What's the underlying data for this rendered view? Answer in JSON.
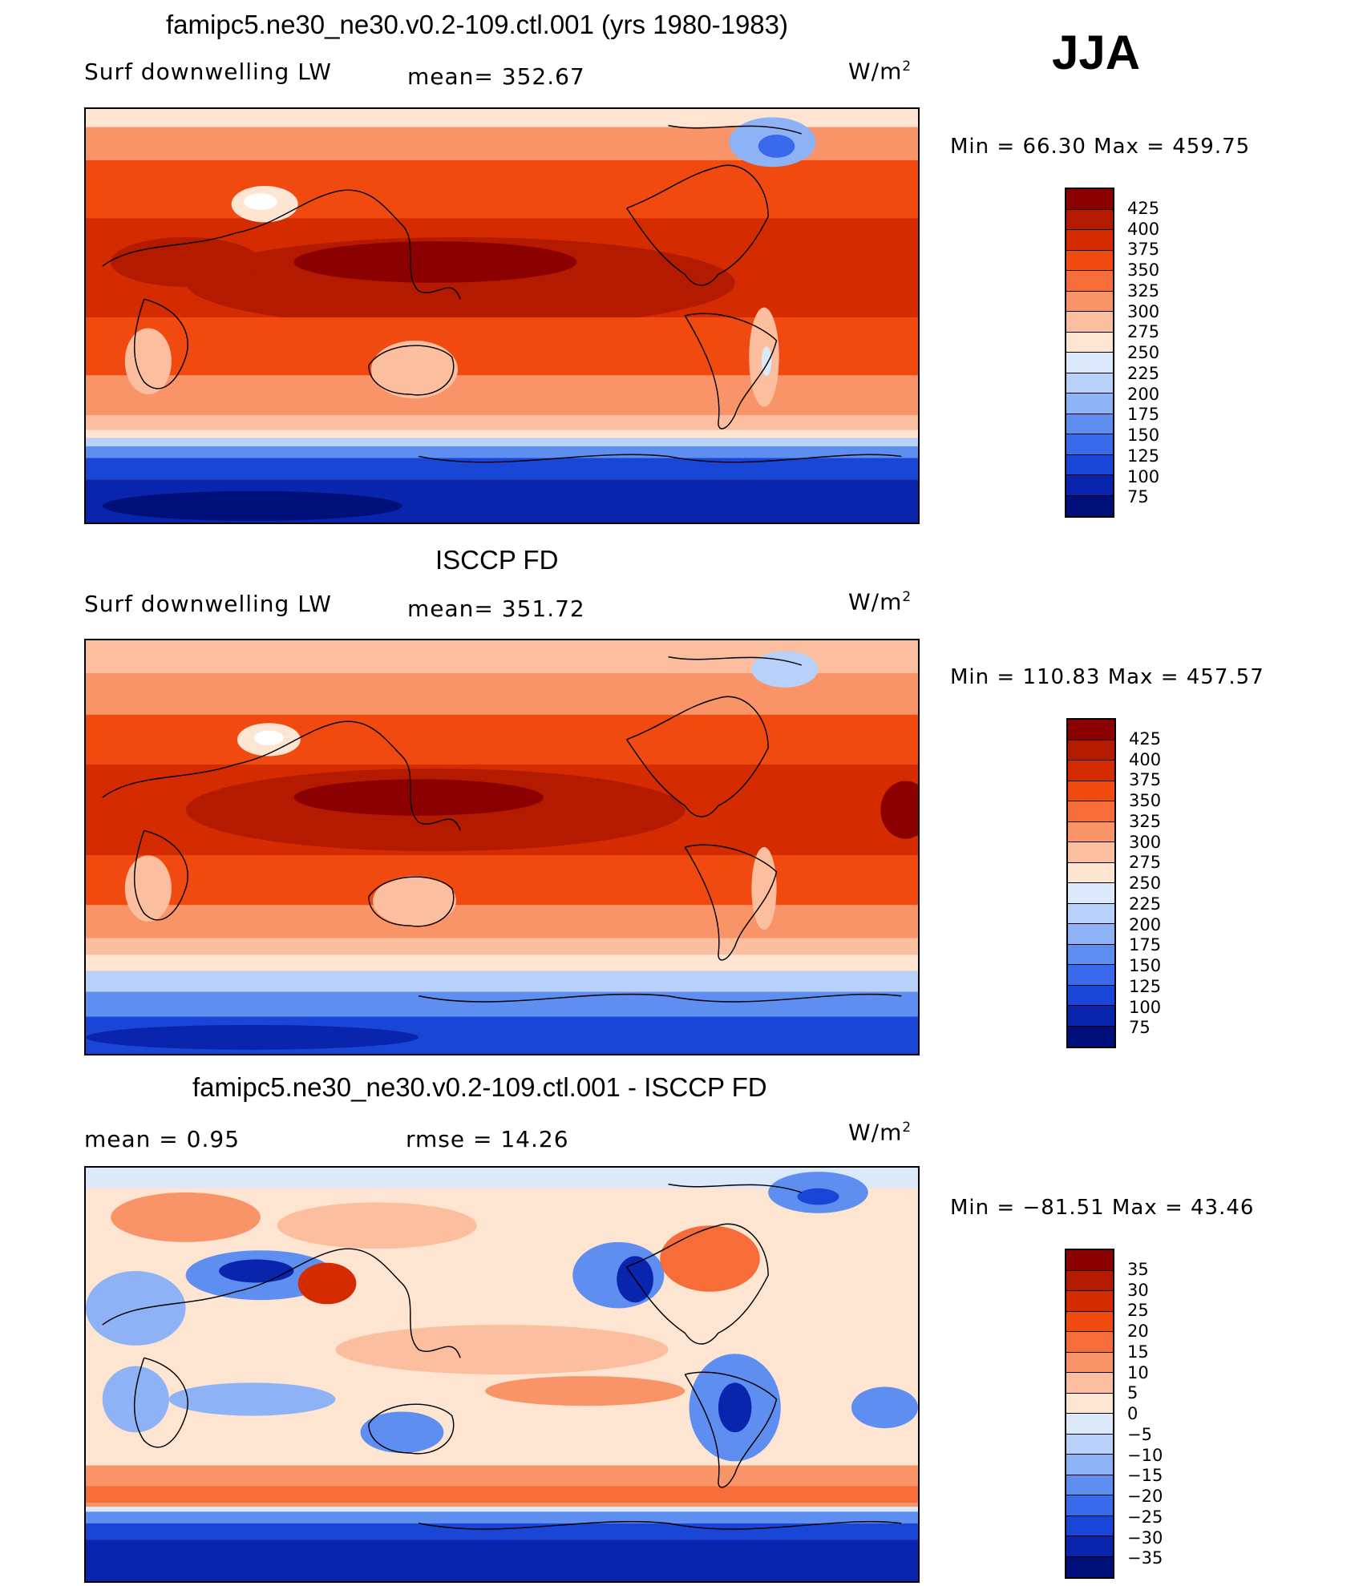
{
  "season": "JJA",
  "panels": [
    {
      "title": "famipc5.ne30_ne30.v0.2-109.ctl.001 (yrs 1980-1983)",
      "left_label": "Surf downwelling LW",
      "mid_label": "mean= 352.67",
      "units_base": "W/m",
      "units_exp": "2",
      "minmax": "Min =   66.30 Max = 459.75",
      "scale": "full"
    },
    {
      "title": "ISCCP FD",
      "left_label": "Surf downwelling LW",
      "mid_label": "mean= 351.72",
      "units_base": "W/m",
      "units_exp": "2",
      "minmax": "Min = 110.83 Max = 457.57",
      "scale": "full"
    },
    {
      "title": "famipc5.ne30_ne30.v0.2-109.ctl.001 - ISCCP FD",
      "left_label": "mean =    0.95",
      "mid_label": "rmse =   14.26",
      "units_base": "W/m",
      "units_exp": "2",
      "minmax": "Min = −81.51 Max =   43.46",
      "scale": "diff"
    }
  ],
  "colorbars": {
    "full": {
      "labels": [
        "425",
        "400",
        "375",
        "350",
        "325",
        "300",
        "275",
        "250",
        "225",
        "200",
        "175",
        "150",
        "125",
        "100",
        "75"
      ],
      "colors": [
        "#8b0000",
        "#b31a00",
        "#d42c00",
        "#f04a10",
        "#f76d3a",
        "#f99468",
        "#fbbe9e",
        "#fde5d2",
        "#dbe9fb",
        "#b7d1fa",
        "#8db2f5",
        "#5e8ef0",
        "#3a6aec",
        "#1a46d8",
        "#0a25ad",
        "#00107a"
      ]
    },
    "diff": {
      "labels": [
        "35",
        "30",
        "25",
        "20",
        "15",
        "10",
        "5",
        "0",
        "−5",
        "−10",
        "−15",
        "−20",
        "−25",
        "−30",
        "−35"
      ],
      "colors": [
        "#8b0000",
        "#b31a00",
        "#d42c00",
        "#f04a10",
        "#f76d3a",
        "#f99468",
        "#fbbe9e",
        "#fde5d2",
        "#dbe9fb",
        "#b7d1fa",
        "#8db2f5",
        "#5e8ef0",
        "#3a6aec",
        "#1a46d8",
        "#0a25ad",
        "#00107a"
      ]
    }
  }
}
